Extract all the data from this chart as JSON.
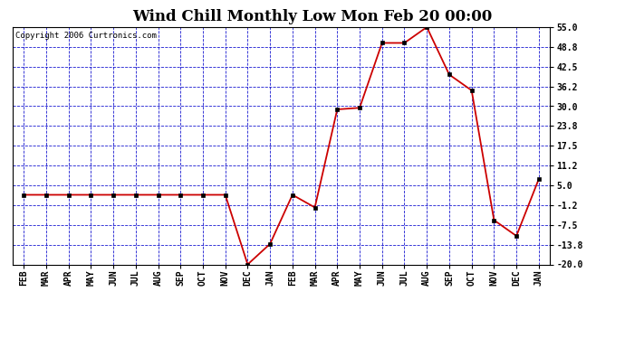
{
  "title": "Wind Chill Monthly Low Mon Feb 20 00:00",
  "copyright": "Copyright 2006 Curtronics.com",
  "x_labels": [
    "FEB",
    "MAR",
    "APR",
    "MAY",
    "JUN",
    "JUL",
    "AUG",
    "SEP",
    "OCT",
    "NOV",
    "DEC",
    "JAN",
    "FEB",
    "MAR",
    "APR",
    "MAY",
    "JUN",
    "JUL",
    "AUG",
    "SEP",
    "OCT",
    "NOV",
    "DEC",
    "JAN"
  ],
  "y_values": [
    2.0,
    2.0,
    2.0,
    2.0,
    2.0,
    2.0,
    2.0,
    2.0,
    2.0,
    2.0,
    -20.0,
    -13.5,
    2.0,
    -2.0,
    29.0,
    29.5,
    50.0,
    50.0,
    55.0,
    40.0,
    35.0,
    -6.0,
    -11.0,
    7.0
  ],
  "ylim_min": -20.0,
  "ylim_max": 55.0,
  "yticks": [
    55.0,
    48.8,
    42.5,
    36.2,
    30.0,
    23.8,
    17.5,
    11.2,
    5.0,
    -1.2,
    -7.5,
    -13.8,
    -20.0
  ],
  "line_color": "#cc0000",
  "marker_color": "#000000",
  "bg_color": "#ffffff",
  "plot_bg": "#ffffff",
  "grid_color": "#0000cc",
  "title_fontsize": 12,
  "copyright_fontsize": 7
}
